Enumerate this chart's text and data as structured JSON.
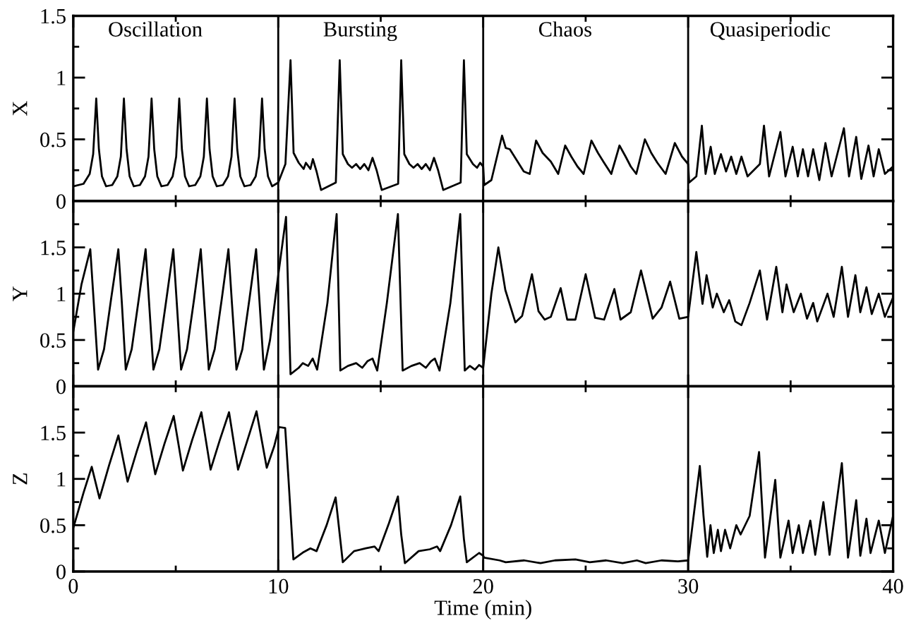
{
  "chart_data": [
    {
      "type": "line",
      "color": "#000000",
      "ylabel": "X",
      "xlim": [
        0,
        40
      ],
      "ylim": [
        0,
        1.5
      ],
      "tick_labels": "y",
      "xticks": [
        0,
        {
          "value": 5,
          "label": null
        },
        10,
        {
          "value": 15,
          "label": null
        },
        20,
        {
          "value": 25,
          "label": null
        },
        30,
        {
          "value": 35,
          "label": null
        },
        40
      ],
      "yticks": [
        0,
        {
          "value": 0.25,
          "label": null
        },
        0.5,
        {
          "value": 0.75,
          "label": null
        },
        1,
        {
          "value": 1.25,
          "label": null
        },
        1.5
      ],
      "ref_lines": [
        {
          "axis": "x",
          "value": 10
        },
        {
          "axis": "x",
          "value": 20
        },
        {
          "axis": "x",
          "value": 30
        }
      ],
      "annotations": [
        "Oscillation",
        "Bursting",
        "Chaos",
        "Quasiperiodic"
      ],
      "x": [
        0,
        0.5,
        0.8,
        0.97,
        1.12,
        1.25,
        1.4,
        1.6,
        1.9,
        2.15,
        2.32,
        2.47,
        2.6,
        2.75,
        2.95,
        3.25,
        3.5,
        3.67,
        3.82,
        3.95,
        4.1,
        4.3,
        4.6,
        4.85,
        5.02,
        5.17,
        5.3,
        5.45,
        5.65,
        5.95,
        6.2,
        6.37,
        6.52,
        6.65,
        6.8,
        7.0,
        7.3,
        7.55,
        7.72,
        7.87,
        8.0,
        8.15,
        8.35,
        8.65,
        8.9,
        9.06,
        9.21,
        9.34,
        9.5,
        9.7,
        10.0,
        10.35,
        10.6,
        10.75,
        11.0,
        11.24,
        11.35,
        11.57,
        11.69,
        11.87,
        12.09,
        12.81,
        13.0,
        13.15,
        13.4,
        13.6,
        13.8,
        14.0,
        14.2,
        14.4,
        14.6,
        14.8,
        15.05,
        15.85,
        16.0,
        16.15,
        16.4,
        16.6,
        16.8,
        17.0,
        17.2,
        17.4,
        17.6,
        17.8,
        18.05,
        18.9,
        19.06,
        19.2,
        19.5,
        19.7,
        19.85,
        20.0,
        20.05,
        20.4,
        20.92,
        21.1,
        21.3,
        21.98,
        22.27,
        22.58,
        22.9,
        23.3,
        23.66,
        24.0,
        24.3,
        24.6,
        24.9,
        25.28,
        25.6,
        25.9,
        26.25,
        26.65,
        26.95,
        27.2,
        27.47,
        27.89,
        28.2,
        28.5,
        28.9,
        29.35,
        29.7,
        30.0,
        30.05,
        30.4,
        30.67,
        30.85,
        31.1,
        31.3,
        31.6,
        31.85,
        32.1,
        32.35,
        32.6,
        32.9,
        33.5,
        33.7,
        33.95,
        34.5,
        34.75,
        35.1,
        35.35,
        35.6,
        35.85,
        36.1,
        36.4,
        36.7,
        37.0,
        37.6,
        37.85,
        38.2,
        38.45,
        38.8,
        39.05,
        39.3,
        39.6,
        40.0
      ],
      "values": [
        0.12,
        0.14,
        0.22,
        0.38,
        0.83,
        0.42,
        0.2,
        0.12,
        0.13,
        0.2,
        0.36,
        0.83,
        0.42,
        0.2,
        0.12,
        0.13,
        0.2,
        0.36,
        0.83,
        0.42,
        0.2,
        0.12,
        0.13,
        0.2,
        0.36,
        0.83,
        0.42,
        0.2,
        0.12,
        0.13,
        0.2,
        0.36,
        0.83,
        0.42,
        0.2,
        0.12,
        0.13,
        0.2,
        0.36,
        0.83,
        0.42,
        0.2,
        0.12,
        0.13,
        0.2,
        0.36,
        0.83,
        0.42,
        0.2,
        0.12,
        0.15,
        0.3,
        1.14,
        0.39,
        0.31,
        0.26,
        0.31,
        0.26,
        0.34,
        0.24,
        0.09,
        0.15,
        1.14,
        0.38,
        0.3,
        0.27,
        0.3,
        0.26,
        0.3,
        0.25,
        0.35,
        0.25,
        0.09,
        0.14,
        1.14,
        0.38,
        0.3,
        0.27,
        0.3,
        0.26,
        0.3,
        0.25,
        0.35,
        0.25,
        0.09,
        0.15,
        1.14,
        0.38,
        0.3,
        0.27,
        0.31,
        0.28,
        0.13,
        0.17,
        0.53,
        0.43,
        0.42,
        0.24,
        0.22,
        0.49,
        0.39,
        0.32,
        0.22,
        0.45,
        0.36,
        0.28,
        0.22,
        0.49,
        0.39,
        0.31,
        0.22,
        0.45,
        0.36,
        0.28,
        0.22,
        0.5,
        0.39,
        0.31,
        0.22,
        0.47,
        0.36,
        0.3,
        0.15,
        0.2,
        0.61,
        0.22,
        0.44,
        0.22,
        0.38,
        0.24,
        0.36,
        0.22,
        0.36,
        0.2,
        0.3,
        0.61,
        0.2,
        0.56,
        0.2,
        0.44,
        0.2,
        0.42,
        0.2,
        0.42,
        0.17,
        0.47,
        0.2,
        0.59,
        0.2,
        0.52,
        0.18,
        0.45,
        0.2,
        0.42,
        0.22,
        0.28
      ]
    },
    {
      "type": "line",
      "color": "#000000",
      "ylabel": "Y",
      "xlim": [
        0,
        40
      ],
      "ylim": [
        0,
        2
      ],
      "tick_labels": "y",
      "xticks": [
        0,
        {
          "value": 5,
          "label": null
        },
        10,
        {
          "value": 15,
          "label": null
        },
        20,
        {
          "value": 25,
          "label": null
        },
        30,
        {
          "value": 35,
          "label": null
        },
        40
      ],
      "yticks": [
        0,
        {
          "value": 0.25,
          "label": null
        },
        0.5,
        {
          "value": 0.75,
          "label": null
        },
        1,
        {
          "value": 1.25,
          "label": null
        },
        1.5,
        {
          "value": 1.75,
          "label": null
        }
      ],
      "ref_lines": [
        {
          "axis": "x",
          "value": 10
        },
        {
          "axis": "x",
          "value": 20
        },
        {
          "axis": "x",
          "value": 30
        }
      ],
      "x": [
        0,
        0.4,
        0.83,
        1.0,
        1.21,
        1.5,
        1.85,
        2.2,
        2.37,
        2.56,
        2.85,
        3.2,
        3.53,
        3.7,
        3.91,
        4.2,
        4.55,
        4.88,
        5.05,
        5.26,
        5.55,
        5.9,
        6.22,
        6.39,
        6.61,
        6.9,
        7.25,
        7.57,
        7.74,
        7.96,
        8.25,
        8.6,
        8.92,
        9.09,
        9.3,
        9.6,
        10.0,
        10.38,
        10.6,
        11.0,
        11.2,
        11.46,
        11.68,
        11.9,
        12.4,
        12.85,
        13.03,
        13.4,
        13.8,
        14.1,
        14.35,
        14.6,
        14.83,
        15.3,
        15.84,
        16.07,
        16.5,
        16.9,
        17.2,
        17.45,
        17.64,
        17.87,
        18.4,
        18.88,
        19.1,
        19.35,
        19.6,
        19.8,
        20.0,
        20.4,
        20.74,
        21.08,
        21.57,
        21.9,
        22.38,
        22.7,
        23.0,
        23.3,
        23.78,
        24.1,
        24.5,
        25.0,
        25.46,
        25.9,
        26.4,
        26.7,
        27.2,
        27.7,
        28.27,
        28.7,
        29.12,
        29.57,
        30.0,
        30.4,
        30.7,
        30.9,
        31.2,
        31.4,
        31.74,
        32.0,
        32.3,
        32.6,
        33.0,
        33.5,
        33.85,
        34.3,
        34.6,
        34.8,
        35.15,
        35.5,
        35.8,
        36.1,
        36.3,
        36.8,
        37.1,
        37.5,
        37.8,
        38.16,
        38.4,
        38.7,
        38.96,
        39.3,
        39.6,
        40.0
      ],
      "values": [
        0.59,
        1.1,
        1.48,
        0.9,
        0.18,
        0.4,
        0.95,
        1.48,
        0.9,
        0.18,
        0.4,
        0.95,
        1.48,
        0.9,
        0.18,
        0.4,
        0.95,
        1.48,
        0.9,
        0.18,
        0.4,
        0.95,
        1.48,
        0.9,
        0.18,
        0.4,
        0.95,
        1.48,
        0.9,
        0.18,
        0.4,
        0.95,
        1.48,
        0.9,
        0.18,
        0.5,
        1.2,
        1.83,
        0.13,
        0.2,
        0.25,
        0.22,
        0.3,
        0.18,
        0.9,
        1.86,
        0.17,
        0.22,
        0.25,
        0.2,
        0.27,
        0.3,
        0.17,
        0.9,
        1.86,
        0.17,
        0.22,
        0.25,
        0.2,
        0.27,
        0.3,
        0.17,
        0.9,
        1.86,
        0.17,
        0.22,
        0.18,
        0.23,
        0.2,
        1.0,
        1.5,
        1.04,
        0.69,
        0.76,
        1.21,
        0.81,
        0.72,
        0.75,
        1.06,
        0.72,
        0.72,
        1.21,
        0.74,
        0.72,
        1.05,
        0.72,
        0.8,
        1.25,
        0.73,
        0.85,
        1.13,
        0.73,
        0.75,
        1.45,
        0.89,
        1.2,
        0.85,
        1.0,
        0.8,
        0.93,
        0.7,
        0.66,
        0.9,
        1.25,
        0.72,
        1.29,
        0.8,
        1.1,
        0.8,
        1.0,
        0.73,
        0.9,
        0.7,
        1.0,
        0.75,
        1.29,
        0.75,
        1.2,
        0.8,
        1.07,
        0.78,
        1.0,
        0.75,
        0.96
      ]
    },
    {
      "type": "line",
      "color": "#000000",
      "ylabel": "Z",
      "xlabel": "Time (min)",
      "xlim": [
        0,
        40
      ],
      "ylim": [
        0,
        2
      ],
      "xticks": [
        0,
        {
          "value": 5,
          "label": null
        },
        10,
        {
          "value": 15,
          "label": null
        },
        20,
        {
          "value": 25,
          "label": null
        },
        30,
        {
          "value": 35,
          "label": null
        },
        40
      ],
      "yticks": [
        0,
        {
          "value": 0.25,
          "label": null
        },
        0.5,
        {
          "value": 0.75,
          "label": null
        },
        1,
        {
          "value": 1.25,
          "label": null
        },
        1.5,
        {
          "value": 1.75,
          "label": null
        }
      ],
      "ref_lines": [
        {
          "axis": "x",
          "value": 10
        },
        {
          "axis": "x",
          "value": 20
        },
        {
          "axis": "x",
          "value": 30
        }
      ],
      "x": [
        0,
        0.5,
        0.9,
        1.28,
        1.75,
        2.2,
        2.65,
        3.1,
        3.55,
        4.0,
        4.45,
        4.9,
        5.35,
        5.8,
        6.25,
        6.7,
        7.15,
        7.6,
        8.04,
        8.5,
        8.94,
        9.44,
        9.8,
        10.04,
        10.34,
        10.5,
        10.74,
        11.24,
        11.57,
        11.87,
        12.36,
        12.8,
        13.0,
        13.15,
        13.7,
        14.27,
        14.7,
        14.9,
        15.4,
        15.84,
        16.0,
        16.18,
        16.85,
        17.4,
        17.75,
        17.9,
        18.43,
        18.88,
        19.06,
        19.2,
        19.8,
        20.0,
        20.05,
        20.8,
        21.1,
        22.0,
        22.8,
        23.5,
        24.5,
        25.2,
        26.0,
        26.8,
        27.5,
        27.93,
        28.7,
        29.5,
        30.0,
        30.57,
        30.75,
        30.93,
        31.09,
        31.25,
        31.45,
        31.6,
        31.8,
        32.05,
        32.35,
        32.56,
        33.0,
        33.46,
        33.75,
        34.25,
        34.5,
        34.9,
        35.1,
        35.4,
        35.6,
        35.96,
        36.2,
        36.6,
        36.9,
        37.5,
        37.8,
        38.2,
        38.4,
        38.7,
        38.9,
        39.3,
        39.6,
        40.0
      ],
      "values": [
        0.47,
        0.85,
        1.13,
        0.79,
        1.15,
        1.47,
        0.97,
        1.3,
        1.61,
        1.05,
        1.38,
        1.68,
        1.09,
        1.42,
        1.72,
        1.1,
        1.42,
        1.72,
        1.1,
        1.42,
        1.73,
        1.12,
        1.35,
        1.56,
        1.55,
        1.0,
        0.13,
        0.21,
        0.25,
        0.22,
        0.5,
        0.8,
        0.4,
        0.1,
        0.22,
        0.25,
        0.27,
        0.22,
        0.52,
        0.81,
        0.4,
        0.09,
        0.22,
        0.24,
        0.27,
        0.22,
        0.5,
        0.81,
        0.35,
        0.1,
        0.2,
        0.17,
        0.15,
        0.12,
        0.1,
        0.12,
        0.09,
        0.12,
        0.13,
        0.1,
        0.12,
        0.09,
        0.12,
        0.09,
        0.12,
        0.11,
        0.12,
        1.14,
        0.6,
        0.16,
        0.5,
        0.2,
        0.45,
        0.22,
        0.45,
        0.25,
        0.5,
        0.4,
        0.6,
        1.29,
        0.15,
        0.99,
        0.15,
        0.55,
        0.2,
        0.5,
        0.2,
        0.55,
        0.18,
        0.75,
        0.18,
        1.17,
        0.15,
        0.77,
        0.17,
        0.57,
        0.2,
        0.55,
        0.2,
        0.6
      ]
    }
  ]
}
